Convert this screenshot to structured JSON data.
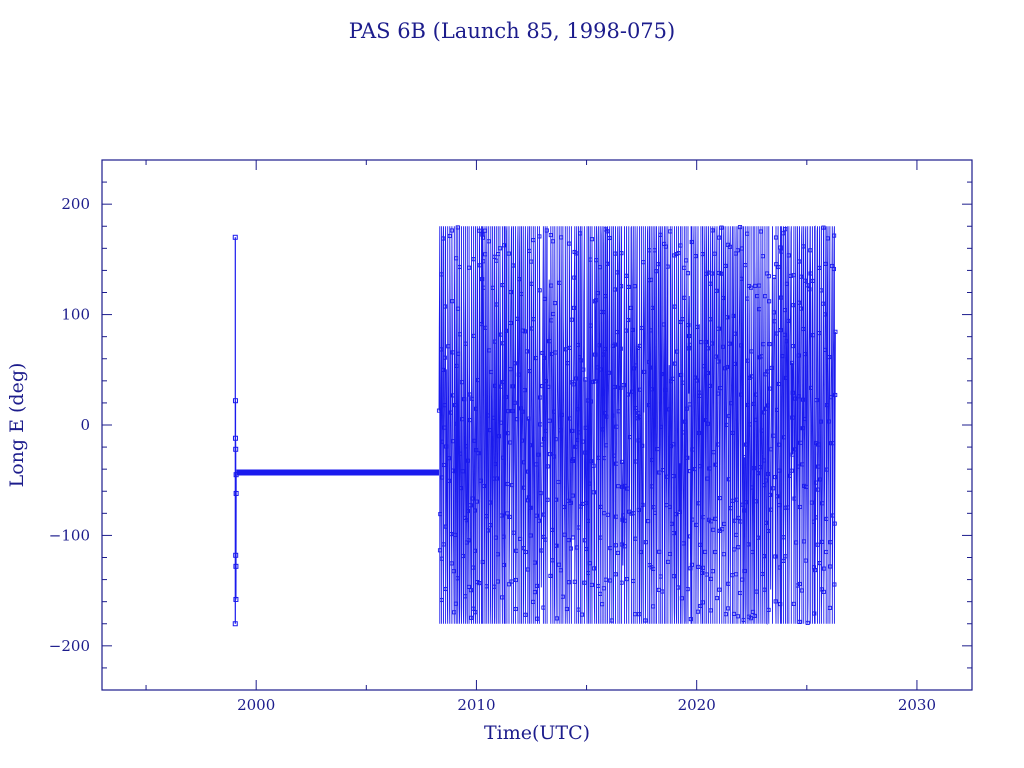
{
  "chart_data": {
    "type": "line",
    "title": "PAS 6B (Launch 85, 1998-075)",
    "xlabel": "Time(UTC)",
    "ylabel": "Long E (deg)",
    "xlim": [
      1993,
      2032.5
    ],
    "ylim": [
      -240,
      240
    ],
    "x_ticks": [
      2000,
      2010,
      2020,
      2030
    ],
    "y_ticks": [
      -200,
      -100,
      0,
      100,
      200
    ],
    "grid": false,
    "legend": "none",
    "series_color": "#1a1aee",
    "segments": [
      {
        "name": "initial-drift",
        "x": [
          1999.05,
          1999.05,
          1999.06,
          1999.06,
          1999.07,
          1999.07,
          1999.08,
          1999.08,
          1999.09,
          1999.09
        ],
        "y": [
          170,
          -180,
          22,
          -12,
          -22,
          -118,
          -128,
          -158,
          -62,
          -45
        ]
      },
      {
        "name": "station-keeping",
        "x": [
          1999.1,
          2008.3
        ],
        "y": [
          -43,
          -43
        ]
      },
      {
        "name": "drift-oscillation",
        "x_range": [
          2008.3,
          2026.3
        ],
        "y_range": [
          -180,
          180
        ],
        "cycles_per_year": 1.3
      }
    ]
  }
}
